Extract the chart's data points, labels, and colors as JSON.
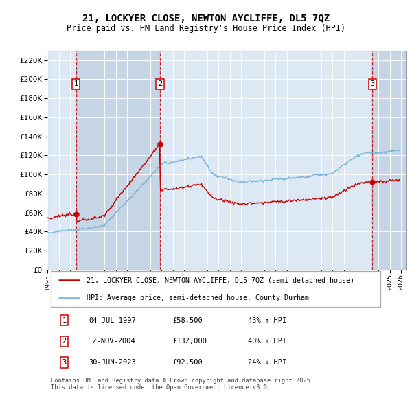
{
  "title1": "21, LOCKYER CLOSE, NEWTON AYCLIFFE, DL5 7QZ",
  "title2": "Price paid vs. HM Land Registry's House Price Index (HPI)",
  "ylim": [
    0,
    230000
  ],
  "yticks": [
    0,
    20000,
    40000,
    60000,
    80000,
    100000,
    120000,
    140000,
    160000,
    180000,
    200000,
    220000
  ],
  "sale1_date": "1997-07-04",
  "sale1_price": 58500,
  "sale2_date": "2004-11-12",
  "sale2_price": 132000,
  "sale3_date": "2023-06-30",
  "sale3_price": 92500,
  "line1_color": "#cc0000",
  "line2_color": "#7ab3d4",
  "plot_bg": "#dce8f4",
  "shade_color": "#c5d5e5",
  "grid_color": "#ffffff",
  "vline_color": "#cc0000",
  "legend1": "21, LOCKYER CLOSE, NEWTON AYCLIFFE, DL5 7QZ (semi-detached house)",
  "legend2": "HPI: Average price, semi-detached house, County Durham",
  "table_entries": [
    [
      "1",
      "04-JUL-1997",
      "£58,500",
      "43% ↑ HPI"
    ],
    [
      "2",
      "12-NOV-2004",
      "£132,000",
      "40% ↑ HPI"
    ],
    [
      "3",
      "30-JUN-2023",
      "£92,500",
      "24% ↓ HPI"
    ]
  ],
  "footer": "Contains HM Land Registry data © Crown copyright and database right 2025.\nThis data is licensed under the Open Government Licence v3.0."
}
